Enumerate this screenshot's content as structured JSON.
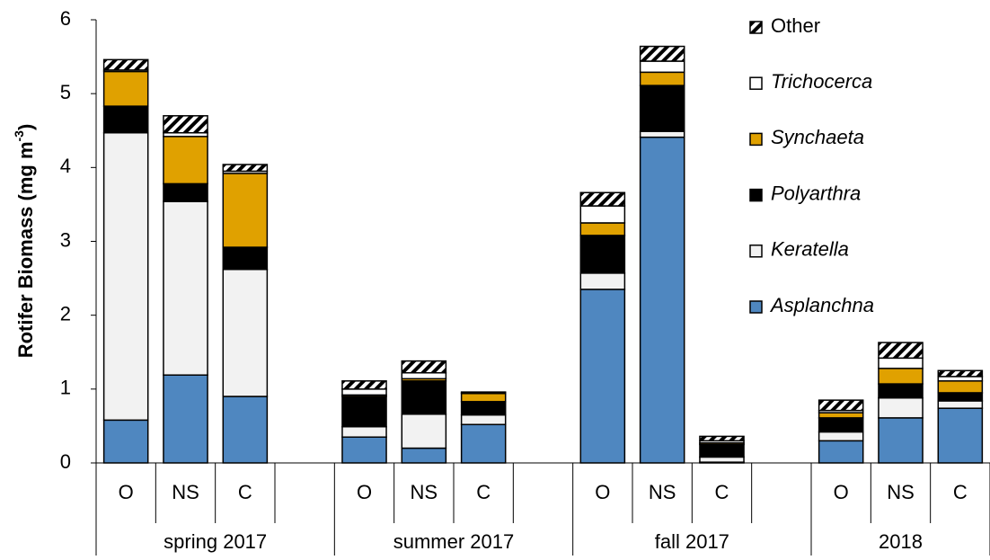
{
  "chart_data": {
    "type": "stacked_bar",
    "ylabel": {
      "text": "Rotifer Biomass (mg m",
      "superscript": "-3",
      "suffix": ")"
    },
    "categories": [
      "O",
      "NS",
      "C",
      null,
      "O",
      "NS",
      "C",
      null,
      "O",
      "NS",
      "C",
      null,
      "O",
      "NS",
      "C"
    ],
    "groups": [
      "spring 2017",
      "summer 2017",
      "fall 2017",
      "2018"
    ],
    "series": [
      {
        "name": "Asplanchna",
        "color": "#4f87c0",
        "values": [
          0.58,
          1.19,
          0.9,
          null,
          0.35,
          0.2,
          0.52,
          null,
          2.35,
          4.41,
          0.01,
          null,
          0.3,
          0.61,
          0.74
        ]
      },
      {
        "name": "Keratella",
        "color": "#f2f2f2",
        "values": [
          3.89,
          2.35,
          1.72,
          null,
          0.14,
          0.46,
          0.13,
          null,
          0.22,
          0.08,
          0.07,
          null,
          0.12,
          0.27,
          0.1
        ]
      },
      {
        "name": "Polyarthra",
        "color": "#000000",
        "values": [
          0.36,
          0.24,
          0.3,
          null,
          0.41,
          0.45,
          0.18,
          null,
          0.51,
          0.62,
          0.17,
          null,
          0.19,
          0.19,
          0.11
        ]
      },
      {
        "name": "Synchaeta",
        "color": "#e0a100",
        "values": [
          0.47,
          0.64,
          1.0,
          null,
          0.02,
          0.03,
          0.11,
          null,
          0.17,
          0.18,
          0.02,
          null,
          0.07,
          0.21,
          0.16
        ]
      },
      {
        "name": "Trichocerca",
        "color": "#ffffff",
        "values": [
          0.02,
          0.05,
          0.03,
          null,
          0.08,
          0.08,
          0.01,
          null,
          0.23,
          0.15,
          0.03,
          null,
          0.03,
          0.14,
          0.06
        ]
      },
      {
        "name": "Other",
        "color": "#000000",
        "pattern": "hatch",
        "values": [
          0.14,
          0.23,
          0.09,
          null,
          0.11,
          0.16,
          0.01,
          null,
          0.18,
          0.2,
          0.06,
          null,
          0.14,
          0.21,
          0.08
        ]
      }
    ],
    "ylim": [
      0,
      6
    ],
    "yticks": [
      0,
      1,
      2,
      3,
      4,
      5,
      6
    ],
    "grid": false,
    "legend": "upper right"
  }
}
